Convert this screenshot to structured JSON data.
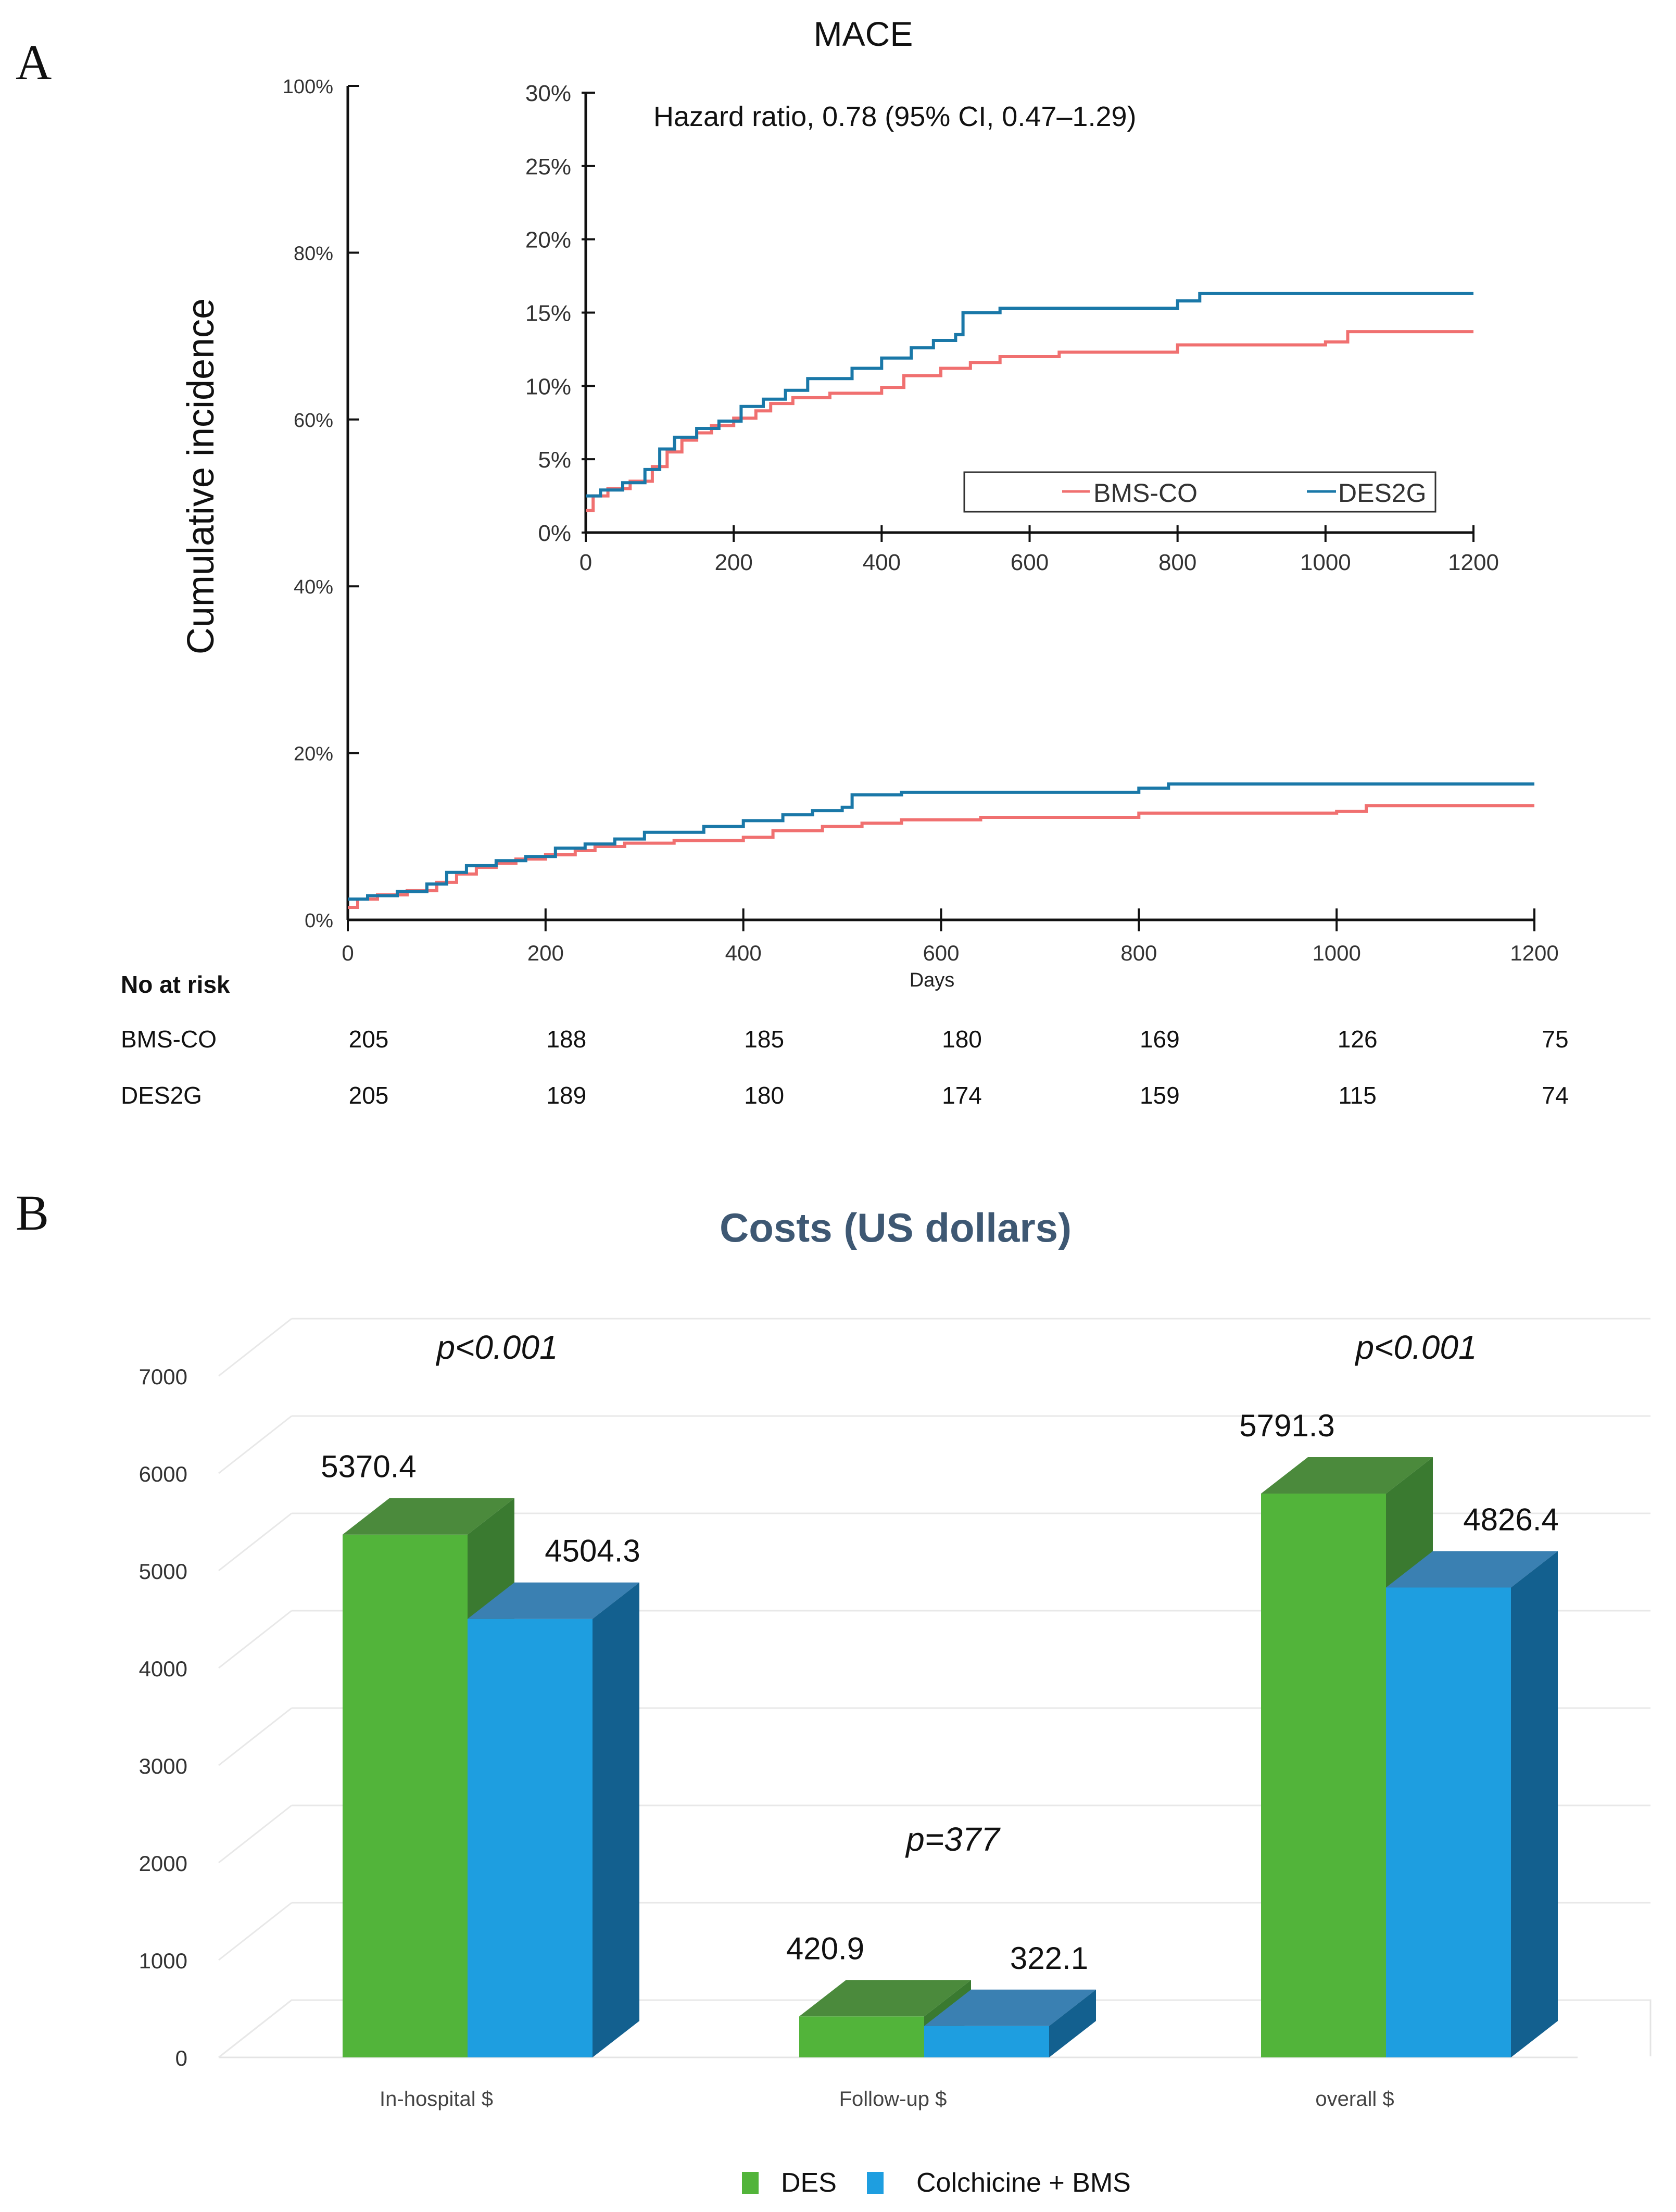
{
  "panel_a": {
    "letter": "A",
    "title": "MACE",
    "ylabel": "Cumulative incidence",
    "xlabel": "Days",
    "risk_table": {
      "header": "No at risk",
      "rows": [
        {
          "name": "BMS-CO",
          "values": [
            "205",
            "188",
            "185",
            "180",
            "169",
            "126",
            "75"
          ]
        },
        {
          "name": "DES2G",
          "values": [
            "205",
            "189",
            "180",
            "174",
            "159",
            "115",
            "74"
          ]
        }
      ]
    }
  },
  "panel_b": {
    "letter": "B",
    "title": "Costs (US dollars)",
    "pvalues": [
      "p<0.001",
      "p=377",
      "p<0.001"
    ]
  },
  "colors": {
    "bms_co": "#f07070",
    "des2g": "#1a78a8",
    "des_bar": "#52b43a",
    "des_bar_top": "#4b8a3c",
    "des_bar_side": "#3a7a30",
    "colch_bar": "#1e9ee0",
    "colch_bar_top": "#3a80b2",
    "colch_bar_side": "#13608f",
    "title_b": "#3e5873"
  },
  "chart_data": [
    {
      "type": "line",
      "title": "MACE",
      "xlabel": "Days",
      "ylabel": "Cumulative incidence",
      "xlim": [
        0,
        1200
      ],
      "ylim": [
        0,
        100
      ],
      "xticks": [
        "0",
        "200",
        "400",
        "600",
        "800",
        "1000",
        "1200"
      ],
      "yticks": [
        "0%",
        "20%",
        "40%",
        "60%",
        "80%",
        "100%"
      ],
      "step": true,
      "series": [
        {
          "name": "BMS-CO",
          "x": [
            0,
            10,
            30,
            60,
            90,
            110,
            130,
            150,
            170,
            200,
            230,
            250,
            280,
            330,
            400,
            430,
            480,
            520,
            560,
            640,
            800,
            1000,
            1030,
            1200
          ],
          "y": [
            1.5,
            2.5,
            3.0,
            3.5,
            4.5,
            5.5,
            6.3,
            6.8,
            7.3,
            7.8,
            8.3,
            8.8,
            9.2,
            9.5,
            9.9,
            10.7,
            11.2,
            11.6,
            12.0,
            12.3,
            12.8,
            13.0,
            13.7,
            13.7
          ]
        },
        {
          "name": "DES2G",
          "x": [
            0,
            20,
            50,
            80,
            100,
            120,
            150,
            180,
            210,
            240,
            270,
            300,
            360,
            400,
            440,
            470,
            500,
            510,
            560,
            800,
            830,
            1200
          ],
          "y": [
            2.5,
            2.9,
            3.4,
            4.3,
            5.7,
            6.5,
            7.1,
            7.6,
            8.6,
            9.1,
            9.7,
            10.5,
            11.2,
            11.9,
            12.6,
            13.1,
            13.5,
            15.0,
            15.3,
            15.8,
            16.3,
            16.3
          ]
        }
      ]
    },
    {
      "type": "line",
      "title": "Hazard ratio, 0.78 (95% CI, 0.47–1.29)",
      "xlim": [
        0,
        1200
      ],
      "ylim": [
        0,
        30
      ],
      "xticks": [
        "0",
        "200",
        "400",
        "600",
        "800",
        "1000",
        "1200"
      ],
      "yticks": [
        "0%",
        "5%",
        "10%",
        "15%",
        "20%",
        "25%",
        "30%"
      ],
      "legend": "bottom-right",
      "step": true,
      "series": [
        {
          "name": "BMS-CO",
          "x": [
            0,
            10,
            30,
            60,
            90,
            110,
            130,
            150,
            170,
            200,
            230,
            250,
            280,
            330,
            400,
            430,
            480,
            520,
            560,
            640,
            800,
            1000,
            1030,
            1200
          ],
          "y": [
            1.5,
            2.5,
            3.0,
            3.5,
            4.5,
            5.5,
            6.3,
            6.8,
            7.3,
            7.8,
            8.3,
            8.8,
            9.2,
            9.5,
            9.9,
            10.7,
            11.2,
            11.6,
            12.0,
            12.3,
            12.8,
            13.0,
            13.7,
            13.7
          ]
        },
        {
          "name": "DES2G",
          "x": [
            0,
            20,
            50,
            80,
            100,
            120,
            150,
            180,
            210,
            240,
            270,
            300,
            360,
            400,
            440,
            470,
            500,
            510,
            560,
            800,
            830,
            1200
          ],
          "y": [
            2.5,
            2.9,
            3.4,
            4.3,
            5.7,
            6.5,
            7.1,
            7.6,
            8.6,
            9.1,
            9.7,
            10.5,
            11.2,
            11.9,
            12.6,
            13.1,
            13.5,
            15.0,
            15.3,
            15.8,
            16.3,
            16.3
          ]
        }
      ]
    },
    {
      "type": "bar",
      "title": "Costs (US dollars)",
      "categories": [
        "In-hospital $",
        "Follow-up $",
        "overall $"
      ],
      "ylim": [
        0,
        7000
      ],
      "yticks": [
        "0",
        "1000",
        "2000",
        "3000",
        "4000",
        "5000",
        "6000",
        "7000"
      ],
      "legend": "bottom",
      "series": [
        {
          "name": "DES",
          "values": [
            5370.4,
            420.9,
            5791.3
          ],
          "labels": [
            "5370.4",
            "420.9",
            "5791.3"
          ]
        },
        {
          "name": "Colchicine + BMS",
          "values": [
            4504.3,
            322.1,
            4826.4
          ],
          "labels": [
            "4504.3",
            "322.1",
            "4826.4"
          ]
        }
      ]
    }
  ]
}
